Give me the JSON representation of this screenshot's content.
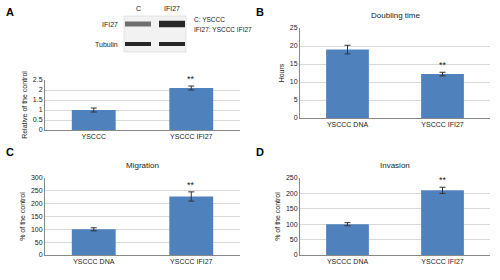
{
  "chart_data": [
    {
      "type": "bar",
      "annotations": [
        "A"
      ],
      "blot": {
        "lanes": [
          "C",
          "IFI27"
        ],
        "bands": [
          "IFI27",
          "Tubulin"
        ],
        "key": [
          "C: YSCCC",
          "IFI27: YSCCC IFI27"
        ]
      },
      "ylabel": "Relative of the control",
      "categories": [
        "YSCCC",
        "YSCCC IFI27"
      ],
      "values": [
        1,
        2.1
      ],
      "errors": [
        0.1,
        0.1
      ],
      "significance": [
        null,
        "**"
      ],
      "color": "#4f81bd",
      "ylim": [
        0,
        2.5
      ],
      "yticks": [
        0,
        0.5,
        1,
        1.5,
        2,
        2.5
      ],
      "grid": true
    },
    {
      "type": "bar",
      "annotations": [
        "B"
      ],
      "title": "Doubling time",
      "ylabel": "Hours",
      "categories": [
        "YSCCC DNA",
        "YSCCC IFI27"
      ],
      "values": [
        19,
        12.2
      ],
      "errors": [
        1.2,
        0.5
      ],
      "significance": [
        null,
        "**"
      ],
      "color": "#4f81bd",
      "ylim": [
        0,
        25
      ],
      "yticks": [
        0,
        5,
        10,
        15,
        20,
        25
      ],
      "grid": true
    },
    {
      "type": "bar",
      "annotations": [
        "C"
      ],
      "title": "Migration",
      "ylabel": "% of the control",
      "categories": [
        "YSCCC DNA",
        "YSCCC IFI27"
      ],
      "values": [
        100,
        228
      ],
      "errors": [
        6,
        18
      ],
      "significance": [
        null,
        "**"
      ],
      "color": "#4f81bd",
      "ylim": [
        0,
        300
      ],
      "yticks": [
        0,
        50,
        100,
        150,
        200,
        250,
        300
      ],
      "grid": true
    },
    {
      "type": "bar",
      "annotations": [
        "D"
      ],
      "title": "Invasion",
      "ylabel": "% of the control",
      "categories": [
        "YSCCC DNA",
        "YSCCC IFI27"
      ],
      "values": [
        100,
        210
      ],
      "errors": [
        5,
        10
      ],
      "significance": [
        null,
        "**"
      ],
      "color": "#4f81bd",
      "ylim": [
        0,
        250
      ],
      "yticks": [
        0,
        50,
        100,
        150,
        200,
        250
      ],
      "grid": true
    }
  ]
}
